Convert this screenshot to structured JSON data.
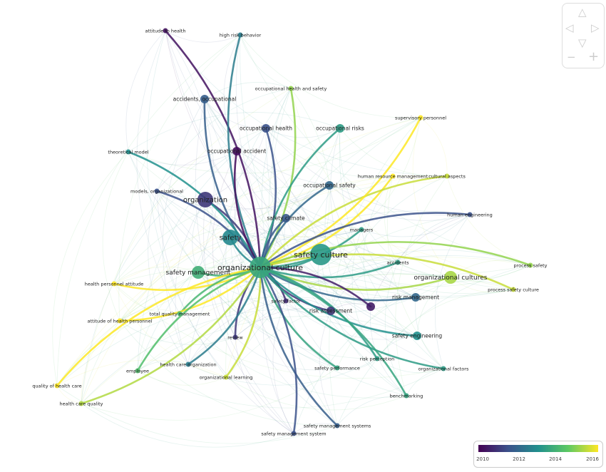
{
  "network": {
    "center": "organizational culture",
    "nodes": [
      {
        "label": "organizational culture",
        "year": 2013.6,
        "weight": 5
      },
      {
        "label": "safety culture",
        "year": 2013.2,
        "weight": 5
      },
      {
        "label": "safety",
        "year": 2012.8,
        "weight": 4
      },
      {
        "label": "organization",
        "year": 2011.0,
        "weight": 4
      },
      {
        "label": "safety management",
        "year": 2013.8,
        "weight": 3,
        "faded": true
      },
      {
        "label": "attitude to health",
        "year": 2010.3,
        "weight": 1
      },
      {
        "label": "high risk behavior",
        "year": 2012.5,
        "weight": 1
      },
      {
        "label": "occupational health and safety",
        "year": 2015.0,
        "weight": 1
      },
      {
        "label": "accidents, occupational",
        "year": 2011.8,
        "weight": 2
      },
      {
        "label": "occupational health",
        "year": 2011.5,
        "weight": 2
      },
      {
        "label": "occupational risks",
        "year": 2013.3,
        "weight": 2
      },
      {
        "label": "theoretical model",
        "year": 2013.0,
        "weight": 1
      },
      {
        "label": "occupational accident",
        "year": 2010.2,
        "weight": 2
      },
      {
        "label": "models, organizational",
        "year": 2011.5,
        "weight": 1
      },
      {
        "label": "occupational safety",
        "year": 2012.0,
        "weight": 2
      },
      {
        "label": "human resource management",
        "year": 2016.0,
        "weight": 1
      },
      {
        "label": "cultural aspects",
        "year": 2015.5,
        "weight": 1
      },
      {
        "label": "supervisory personnel",
        "year": 2016.0,
        "weight": 1
      },
      {
        "label": "safety climate",
        "year": 2011.7,
        "weight": 2
      },
      {
        "label": "managers",
        "year": 2013.3,
        "weight": 1
      },
      {
        "label": "human engineering",
        "year": 2011.5,
        "weight": 1
      },
      {
        "label": "accidents",
        "year": 2013.3,
        "weight": 1
      },
      {
        "label": "process safety",
        "year": 2015.0,
        "weight": 1
      },
      {
        "label": "organizational cultures",
        "year": 2015.2,
        "weight": 3
      },
      {
        "label": "process safety culture",
        "year": 2015.5,
        "weight": 1
      },
      {
        "label": "risk management",
        "year": 2012.0,
        "weight": 2,
        "faded": true
      },
      {
        "label": "",
        "year": 2010.5,
        "weight": 2
      },
      {
        "label": "risk assessment",
        "year": 2011.0,
        "weight": 2
      },
      {
        "label": "safety factor",
        "year": 2010.8,
        "weight": 1
      },
      {
        "label": "safety engineering",
        "year": 2013.0,
        "weight": 2
      },
      {
        "label": "health personnel attitude",
        "year": 2016.0,
        "weight": 1
      },
      {
        "label": "total quality management",
        "year": 2014.0,
        "weight": 1
      },
      {
        "label": "attitude of health personnel",
        "year": 2016.0,
        "weight": 1
      },
      {
        "label": "review",
        "year": 2011.0,
        "weight": 1
      },
      {
        "label": "health care organization",
        "year": 2012.5,
        "weight": 1
      },
      {
        "label": "employee",
        "year": 2014.2,
        "weight": 1
      },
      {
        "label": "organizational learning",
        "year": 2015.5,
        "weight": 1
      },
      {
        "label": "quality of health care",
        "year": 2016.0,
        "weight": 1
      },
      {
        "label": "health care quality",
        "year": 2015.3,
        "weight": 1
      },
      {
        "label": "safety performance",
        "year": 2013.5,
        "weight": 1
      },
      {
        "label": "risk perception",
        "year": 2013.3,
        "weight": 1
      },
      {
        "label": "organizational factors",
        "year": 2013.3,
        "weight": 1
      },
      {
        "label": "benchmarking",
        "year": 2013.5,
        "weight": 1
      },
      {
        "label": "safety management systems",
        "year": 2011.8,
        "weight": 1
      },
      {
        "label": "safety management system",
        "year": 2011.5,
        "weight": 1,
        "faded": true
      }
    ]
  },
  "legend": {
    "min_year": 2010,
    "max_year": 2016,
    "ticks": [
      "2010",
      "2012",
      "2014",
      "2016"
    ],
    "colors": [
      "#440154",
      "#3b528b",
      "#21908d",
      "#5dc963",
      "#fde725"
    ]
  },
  "nav": {
    "up": "△",
    "down": "▽",
    "left": "◁",
    "right": "▷",
    "zoom_out": "−",
    "zoom_in": "+"
  }
}
